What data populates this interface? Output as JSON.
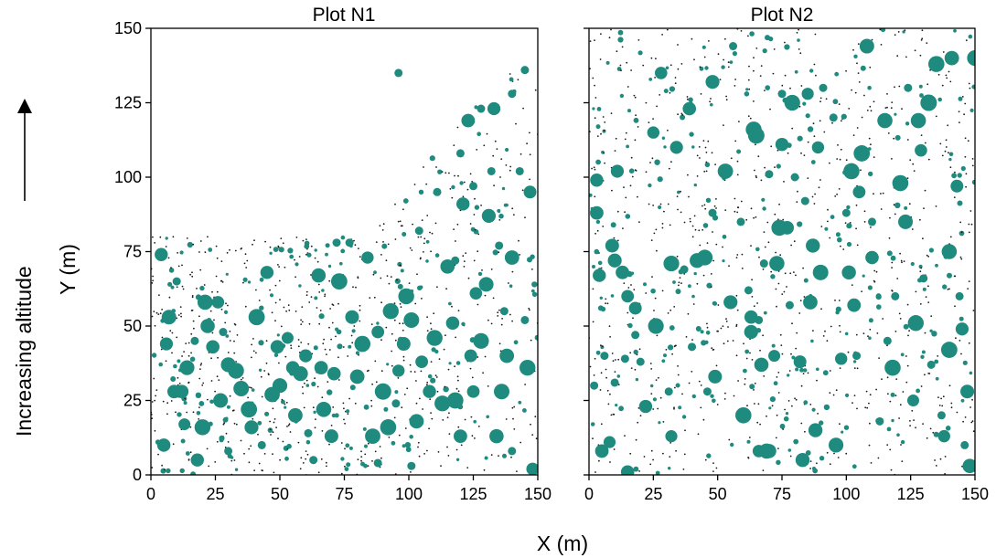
{
  "chart_data": {
    "type": "scatter",
    "panels": [
      {
        "title": "Plot N1",
        "xlim": [
          0,
          150
        ],
        "ylim": [
          0,
          150
        ],
        "xticks": [
          0,
          25,
          50,
          75,
          100,
          125,
          150
        ],
        "yticks": [
          0,
          25,
          50,
          75,
          100,
          125,
          150
        ],
        "large_trees": [
          [
            4,
            74
          ],
          [
            6,
            44
          ],
          [
            7,
            53
          ],
          [
            5,
            10
          ],
          [
            9,
            28
          ],
          [
            14,
            36
          ],
          [
            13,
            17
          ],
          [
            12,
            28
          ],
          [
            20,
            16
          ],
          [
            18,
            5
          ],
          [
            21,
            58
          ],
          [
            22,
            50
          ],
          [
            24,
            43
          ],
          [
            26,
            58
          ],
          [
            27,
            25
          ],
          [
            30,
            37
          ],
          [
            33,
            35
          ],
          [
            35,
            29
          ],
          [
            38,
            22
          ],
          [
            39,
            16
          ],
          [
            41,
            53
          ],
          [
            45,
            68
          ],
          [
            47,
            27
          ],
          [
            49,
            43
          ],
          [
            50,
            30
          ],
          [
            53,
            46
          ],
          [
            55,
            36
          ],
          [
            56,
            20
          ],
          [
            58,
            34
          ],
          [
            60,
            40
          ],
          [
            65,
            67
          ],
          [
            66,
            36
          ],
          [
            67,
            22
          ],
          [
            70,
            13
          ],
          [
            71,
            34
          ],
          [
            73,
            65
          ],
          [
            78,
            53
          ],
          [
            80,
            33
          ],
          [
            82,
            44
          ],
          [
            84,
            73
          ],
          [
            86,
            13
          ],
          [
            88,
            48
          ],
          [
            90,
            28
          ],
          [
            92,
            16
          ],
          [
            93,
            55
          ],
          [
            96,
            35
          ],
          [
            98,
            44
          ],
          [
            99,
            60
          ],
          [
            101,
            52
          ],
          [
            103,
            18
          ],
          [
            105,
            38
          ],
          [
            108,
            28
          ],
          [
            110,
            46
          ],
          [
            113,
            24
          ],
          [
            115,
            70
          ],
          [
            117,
            51
          ],
          [
            118,
            25
          ],
          [
            120,
            13
          ],
          [
            121,
            91
          ],
          [
            123,
            119
          ],
          [
            124,
            40
          ],
          [
            125,
            28
          ],
          [
            126,
            61
          ],
          [
            128,
            45
          ],
          [
            130,
            64
          ],
          [
            131,
            87
          ],
          [
            133,
            123
          ],
          [
            134,
            13
          ],
          [
            136,
            28
          ],
          [
            138,
            40
          ],
          [
            140,
            73
          ],
          [
            146,
            36
          ],
          [
            147,
            95
          ],
          [
            148,
            2
          ]
        ],
        "medium_trees": [
          [
            10,
            65
          ],
          [
            17,
            45
          ],
          [
            30,
            8
          ],
          [
            43,
            10
          ],
          [
            61,
            14
          ],
          [
            72,
            78
          ],
          [
            77,
            78
          ],
          [
            88,
            4
          ],
          [
            95,
            24
          ],
          [
            104,
            82
          ],
          [
            111,
            95
          ],
          [
            118,
            72
          ],
          [
            120,
            108
          ],
          [
            125,
            97
          ],
          [
            128,
            123
          ],
          [
            132,
            102
          ],
          [
            135,
            77
          ],
          [
            137,
            55
          ],
          [
            140,
            8
          ],
          [
            143,
            102
          ],
          [
            145,
            52
          ],
          [
            96,
            135
          ],
          [
            140,
            128
          ],
          [
            145,
            136
          ],
          [
            101,
            3
          ],
          [
            63,
            5
          ],
          [
            28,
            48
          ]
        ]
      },
      {
        "title": "Plot N2",
        "xlim": [
          0,
          150
        ],
        "ylim": [
          0,
          150
        ],
        "xticks": [
          0,
          25,
          50,
          75,
          100,
          125,
          150
        ],
        "yticks": [
          0,
          25,
          50,
          75,
          100,
          125,
          150
        ],
        "large_trees": [
          [
            3,
            99
          ],
          [
            3,
            88
          ],
          [
            4,
            67
          ],
          [
            5,
            8
          ],
          [
            8,
            11
          ],
          [
            9,
            77
          ],
          [
            10,
            72
          ],
          [
            11,
            102
          ],
          [
            13,
            68
          ],
          [
            15,
            1
          ],
          [
            15,
            60
          ],
          [
            18,
            56
          ],
          [
            22,
            23
          ],
          [
            25,
            115
          ],
          [
            26,
            50
          ],
          [
            28,
            135
          ],
          [
            32,
            13
          ],
          [
            32,
            71
          ],
          [
            34,
            110
          ],
          [
            39,
            123
          ],
          [
            42,
            72
          ],
          [
            45,
            73
          ],
          [
            48,
            132
          ],
          [
            49,
            33
          ],
          [
            53,
            102
          ],
          [
            55,
            58
          ],
          [
            60,
            20
          ],
          [
            63,
            53
          ],
          [
            63,
            48
          ],
          [
            64,
            116
          ],
          [
            66,
            8
          ],
          [
            67,
            37
          ],
          [
            69,
            8
          ],
          [
            72,
            40
          ],
          [
            73,
            71
          ],
          [
            74,
            83
          ],
          [
            75,
            111
          ],
          [
            77,
            83
          ],
          [
            79,
            125
          ],
          [
            82,
            38
          ],
          [
            83,
            5
          ],
          [
            85,
            128
          ],
          [
            86,
            58
          ],
          [
            87,
            77
          ],
          [
            88,
            15
          ],
          [
            89,
            110
          ],
          [
            90,
            68
          ],
          [
            96,
            10
          ],
          [
            98,
            39
          ],
          [
            102,
            102
          ],
          [
            103,
            57
          ],
          [
            105,
            95
          ],
          [
            106,
            108
          ],
          [
            108,
            144
          ],
          [
            110,
            73
          ],
          [
            115,
            119
          ],
          [
            118,
            36
          ],
          [
            121,
            98
          ],
          [
            123,
            85
          ],
          [
            126,
            25
          ],
          [
            127,
            51
          ],
          [
            128,
            119
          ],
          [
            129,
            109
          ],
          [
            132,
            125
          ],
          [
            135,
            138
          ],
          [
            138,
            13
          ],
          [
            140,
            42
          ],
          [
            140,
            75
          ],
          [
            141,
            140
          ],
          [
            143,
            97
          ],
          [
            145,
            49
          ],
          [
            147,
            28
          ],
          [
            148,
            3
          ],
          [
            150,
            140
          ],
          [
            65,
            114
          ],
          [
            70,
            8
          ],
          [
            101,
            68
          ]
        ],
        "medium_trees": [
          [
            2,
            30
          ],
          [
            6,
            40
          ],
          [
            10,
            31
          ],
          [
            14,
            39
          ],
          [
            18,
            47
          ],
          [
            20,
            38
          ],
          [
            31,
            28
          ],
          [
            37,
            69
          ],
          [
            40,
            43
          ],
          [
            46,
            28
          ],
          [
            48,
            88
          ],
          [
            56,
            144
          ],
          [
            59,
            85
          ],
          [
            62,
            62
          ],
          [
            66,
            52
          ],
          [
            68,
            71
          ],
          [
            78,
            57
          ],
          [
            80,
            100
          ],
          [
            84,
            92
          ],
          [
            91,
            130
          ],
          [
            95,
            120
          ],
          [
            100,
            88
          ],
          [
            104,
            40
          ],
          [
            110,
            85
          ],
          [
            113,
            18
          ],
          [
            116,
            45
          ],
          [
            119,
            60
          ],
          [
            124,
            130
          ],
          [
            130,
            66
          ],
          [
            133,
            37
          ],
          [
            137,
            20
          ],
          [
            144,
            60
          ],
          [
            146,
            10
          ],
          [
            75,
            128
          ],
          [
            70,
            101
          ]
        ]
      }
    ],
    "xlabel": "X (m)",
    "ylabel": "Y (m)",
    "side_label": "Increasing altitude",
    "colors": {
      "trees": "#1f8a7e",
      "saplings": "#1a1a1a"
    },
    "grid": false
  }
}
